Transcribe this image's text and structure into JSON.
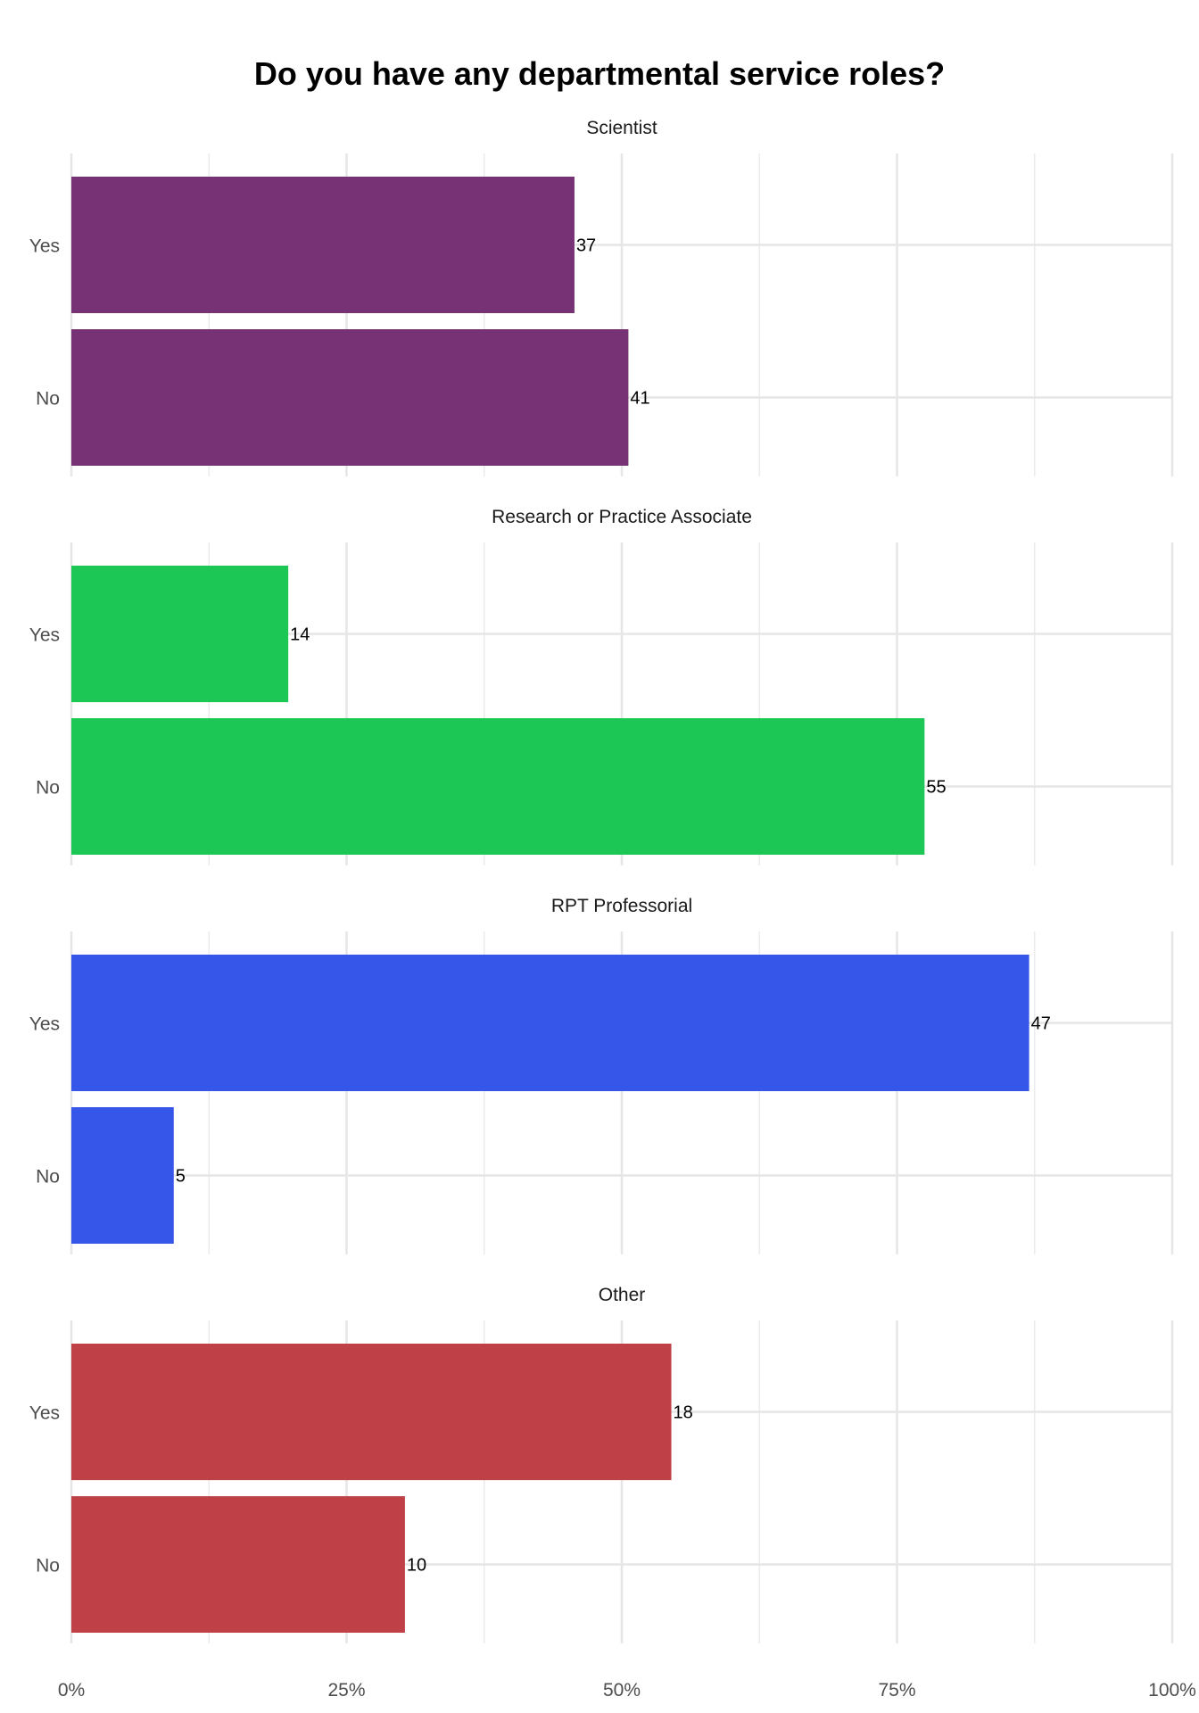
{
  "chart_data": {
    "type": "bar",
    "orientation": "horizontal",
    "title": "Do you have any departmental service roles?",
    "xlabel": "",
    "ylabel": "",
    "xlim": [
      0,
      100
    ],
    "x_ticks": [
      "0%",
      "25%",
      "50%",
      "75%",
      "100%"
    ],
    "grid": true,
    "legend": "none",
    "categories": [
      "Yes",
      "No"
    ],
    "panels": [
      {
        "name": "Scientist",
        "color": "#763274",
        "percents": [
          45.7,
          50.6
        ],
        "labels": [
          "37",
          "41"
        ]
      },
      {
        "name": "Research or Practice Associate",
        "color": "#1DC756",
        "percents": [
          19.7,
          77.5
        ],
        "labels": [
          "14",
          "55"
        ]
      },
      {
        "name": "RPT Professorial",
        "color": "#3656EA",
        "percents": [
          87.0,
          9.3
        ],
        "labels": [
          "47",
          "5"
        ]
      },
      {
        "name": "Other",
        "color": "#BF4046",
        "percents": [
          54.5,
          30.3
        ],
        "labels": [
          "18",
          "10"
        ]
      }
    ]
  }
}
